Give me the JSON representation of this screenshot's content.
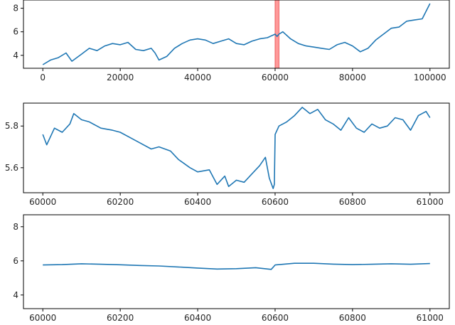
{
  "colors": {
    "line": "#1f77b4",
    "highlight": "#ff9999",
    "highlight_edge": "#e8474a",
    "axes": "#000000",
    "text": "#262626"
  },
  "chart_data": [
    {
      "type": "line",
      "title": "",
      "xlabel": "",
      "ylabel": "",
      "xlim": [
        -5000,
        105000
      ],
      "ylim": [
        2.9,
        8.7
      ],
      "xticks": [
        0,
        20000,
        40000,
        60000,
        80000,
        100000
      ],
      "xtick_labels": [
        "0",
        "20000",
        "40000",
        "60000",
        "80000",
        "100000"
      ],
      "yticks": [
        4,
        6,
        8
      ],
      "ytick_labels": [
        "4",
        "6",
        "8"
      ],
      "grid": false,
      "highlight_span": [
        60000,
        61000
      ],
      "series": [
        {
          "x": [
            0,
            2000,
            4000,
            6000,
            7500,
            10000,
            12000,
            14000,
            16000,
            18000,
            20000,
            22000,
            24000,
            26000,
            28000,
            29000,
            30000,
            32000,
            34000,
            36000,
            38000,
            40000,
            42000,
            44000,
            46000,
            48000,
            50000,
            52000,
            54000,
            56000,
            58000,
            60000,
            60500,
            61000,
            62000,
            64000,
            66000,
            68000,
            70000,
            72000,
            74000,
            76000,
            78000,
            80000,
            82000,
            84000,
            86000,
            88000,
            90000,
            92000,
            94000,
            96000,
            98000,
            100000
          ],
          "y": [
            3.2,
            3.6,
            3.8,
            4.2,
            3.5,
            4.1,
            4.6,
            4.4,
            4.8,
            5.0,
            4.9,
            5.1,
            4.5,
            4.4,
            4.6,
            4.2,
            3.6,
            3.9,
            4.6,
            5.0,
            5.3,
            5.4,
            5.3,
            5.0,
            5.2,
            5.4,
            5.0,
            4.9,
            5.2,
            5.4,
            5.5,
            5.8,
            5.6,
            5.8,
            6.0,
            5.4,
            5.0,
            4.8,
            4.7,
            4.6,
            4.5,
            4.9,
            5.1,
            4.8,
            4.3,
            4.6,
            5.3,
            5.8,
            6.3,
            6.4,
            6.9,
            7.0,
            7.1,
            8.4
          ]
        }
      ]
    },
    {
      "type": "line",
      "title": "",
      "xlabel": "",
      "ylabel": "",
      "xlim": [
        59950,
        61050
      ],
      "ylim": [
        5.48,
        5.91
      ],
      "xticks": [
        60000,
        60200,
        60400,
        60600,
        60800,
        61000
      ],
      "xtick_labels": [
        "60000",
        "60200",
        "60400",
        "60600",
        "60800",
        "61000"
      ],
      "yticks": [
        5.6,
        5.8
      ],
      "ytick_labels": [
        "5.6",
        "5.8"
      ],
      "grid": false,
      "series": [
        {
          "x": [
            60000,
            60010,
            60030,
            60050,
            60070,
            60080,
            60100,
            60120,
            60150,
            60180,
            60200,
            60230,
            60250,
            60280,
            60300,
            60330,
            60350,
            60380,
            60400,
            60430,
            60450,
            60470,
            60480,
            60500,
            60520,
            60540,
            60560,
            60575,
            60585,
            60595,
            60598,
            60600,
            60610,
            60630,
            60650,
            60670,
            60690,
            60710,
            60730,
            60750,
            60770,
            60790,
            60810,
            60830,
            60850,
            60870,
            60890,
            60910,
            60930,
            60950,
            60970,
            60990,
            61000
          ],
          "y": [
            5.76,
            5.71,
            5.79,
            5.77,
            5.81,
            5.86,
            5.83,
            5.82,
            5.79,
            5.78,
            5.77,
            5.74,
            5.72,
            5.69,
            5.7,
            5.68,
            5.64,
            5.6,
            5.58,
            5.59,
            5.52,
            5.56,
            5.51,
            5.54,
            5.53,
            5.57,
            5.61,
            5.65,
            5.55,
            5.5,
            5.52,
            5.76,
            5.8,
            5.82,
            5.85,
            5.89,
            5.86,
            5.88,
            5.83,
            5.81,
            5.78,
            5.84,
            5.79,
            5.77,
            5.81,
            5.79,
            5.8,
            5.84,
            5.83,
            5.78,
            5.85,
            5.87,
            5.84
          ]
        }
      ]
    },
    {
      "type": "line",
      "title": "",
      "xlabel": "",
      "ylabel": "",
      "xlim": [
        59950,
        61050
      ],
      "ylim": [
        3.2,
        8.7
      ],
      "xticks": [
        60000,
        60200,
        60400,
        60600,
        60800,
        61000
      ],
      "xtick_labels": [
        "60000",
        "60200",
        "60400",
        "60600",
        "60800",
        "61000"
      ],
      "yticks": [
        4,
        6,
        8
      ],
      "ytick_labels": [
        "4",
        "6",
        "8"
      ],
      "grid": false,
      "series": [
        {
          "x": [
            60000,
            60050,
            60100,
            60150,
            60200,
            60250,
            60300,
            60350,
            60400,
            60450,
            60500,
            60550,
            60590,
            60600,
            60650,
            60700,
            60750,
            60800,
            60850,
            60900,
            60950,
            61000
          ],
          "y": [
            5.76,
            5.78,
            5.83,
            5.8,
            5.77,
            5.73,
            5.7,
            5.64,
            5.58,
            5.52,
            5.54,
            5.6,
            5.5,
            5.76,
            5.86,
            5.86,
            5.81,
            5.78,
            5.8,
            5.83,
            5.8,
            5.84
          ]
        }
      ]
    }
  ]
}
